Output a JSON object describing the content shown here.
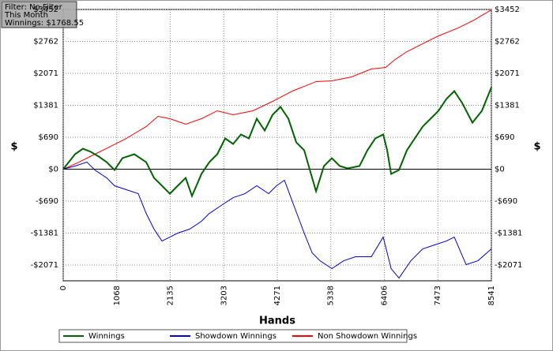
{
  "chart_data": {
    "type": "line",
    "annotations": [
      "Filter: No Filter",
      "This Month",
      "Winnings: $1768.55"
    ],
    "x_label": "Hands",
    "y_label": "$",
    "xlim": [
      0,
      8541
    ],
    "xticks": [
      0,
      1068,
      2135,
      3203,
      4271,
      5338,
      6406,
      7473,
      8541
    ],
    "ylim": [
      -2412,
      3452
    ],
    "yticks": [
      {
        "value": -2071,
        "label": "-$2071"
      },
      {
        "value": -1381,
        "label": "-$1381"
      },
      {
        "value": -690,
        "label": "-$690"
      },
      {
        "value": 0,
        "label": "$0"
      },
      {
        "value": 690,
        "label": "$690"
      },
      {
        "value": 1381,
        "label": "$1381"
      },
      {
        "value": 2071,
        "label": "$2071"
      },
      {
        "value": 2762,
        "label": "$2762"
      },
      {
        "value": 3452,
        "label": "$3452"
      }
    ],
    "grid": true,
    "legend": "bottom",
    "series": [
      {
        "name": "Winnings",
        "color": "#006400",
        "x": [
          0,
          236,
          394,
          552,
          709,
          867,
          1024,
          1182,
          1418,
          1655,
          1812,
          1970,
          2128,
          2285,
          2443,
          2569,
          2758,
          2916,
          3073,
          3231,
          3389,
          3546,
          3704,
          3861,
          4019,
          4177,
          4334,
          4492,
          4649,
          4807,
          4965,
          5044,
          5201,
          5359,
          5516,
          5674,
          5910,
          6068,
          6225,
          6383,
          6462,
          6541,
          6698,
          6856,
          7013,
          7171,
          7328,
          7486,
          7643,
          7801,
          7958,
          8163,
          8352,
          8541
        ],
        "values": [
          0,
          324,
          443,
          375,
          273,
          153,
          -17,
          239,
          324,
          153,
          -188,
          -358,
          -529,
          -358,
          -188,
          -580,
          -102,
          153,
          324,
          665,
          546,
          750,
          665,
          1091,
          835,
          1176,
          1347,
          1091,
          580,
          409,
          -188,
          -477,
          68,
          239,
          68,
          17,
          68,
          409,
          665,
          750,
          409,
          -102,
          -17,
          409,
          665,
          921,
          1091,
          1262,
          1517,
          1688,
          1432,
          1006,
          1262,
          1769
        ]
      },
      {
        "name": "Showdown Winnings",
        "color": "#0000e0",
        "x": [
          0,
          236,
          473,
          630,
          867,
          1024,
          1261,
          1497,
          1655,
          1812,
          1970,
          2128,
          2285,
          2521,
          2758,
          2916,
          3152,
          3389,
          3625,
          3861,
          4098,
          4255,
          4413,
          4571,
          4807,
          4965,
          5122,
          5359,
          5595,
          5831,
          6146,
          6383,
          6541,
          6698,
          6935,
          7171,
          7407,
          7643,
          7801,
          8037,
          8273,
          8541
        ],
        "values": [
          0,
          68,
          153,
          -17,
          -188,
          -358,
          -443,
          -529,
          -955,
          -1296,
          -1552,
          -1467,
          -1381,
          -1296,
          -1125,
          -955,
          -784,
          -614,
          -529,
          -358,
          -529,
          -358,
          -239,
          -699,
          -1381,
          -1807,
          -1978,
          -2148,
          -1978,
          -1893,
          -1893,
          -1467,
          -2148,
          -2353,
          -1978,
          -1722,
          -1637,
          -1552,
          -1467,
          -2063,
          -1978,
          -1722
        ]
      },
      {
        "name": "Non Showdown Winnings",
        "color": "#ff0000",
        "x": [
          0,
          315,
          630,
          946,
          1261,
          1655,
          1891,
          2128,
          2443,
          2758,
          3073,
          3389,
          3783,
          4177,
          4571,
          5044,
          5359,
          5753,
          6146,
          6430,
          6619,
          6856,
          7171,
          7486,
          7880,
          8195,
          8541
        ],
        "values": [
          0,
          153,
          324,
          494,
          665,
          921,
          1142,
          1091,
          972,
          1091,
          1262,
          1176,
          1262,
          1466,
          1688,
          1893,
          1910,
          1995,
          2165,
          2199,
          2370,
          2540,
          2711,
          2881,
          3052,
          3222,
          3444
        ]
      }
    ]
  }
}
